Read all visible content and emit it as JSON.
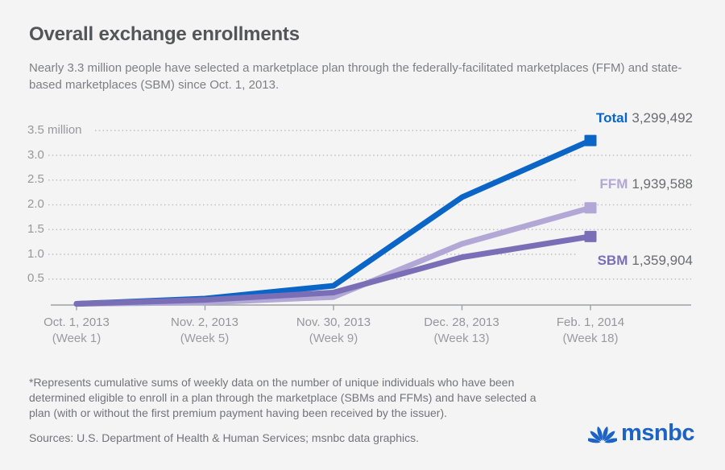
{
  "header": {
    "title": "Overall exchange enrollments",
    "subtitle": "Nearly 3.3 million people have selected a marketplace plan through the federally-facilitated marketplaces (FFM) and state-based marketplaces (SBM) since Oct. 1, 2013."
  },
  "chart_data": {
    "type": "line",
    "title": "Overall exchange enrollments",
    "unit": "millions of people (cumulative)",
    "ylim": [
      0,
      3.5
    ],
    "grid": "dotted-horizontal",
    "legend_position": "right-of-line-ends",
    "y_axis_labels": [
      "3.5 million",
      "3.0",
      "2.5",
      "2.0",
      "1.5",
      "1.0",
      "0.5"
    ],
    "y_gridline_values": [
      3.5,
      3.0,
      2.5,
      2.0,
      1.5,
      1.0,
      0.5
    ],
    "x_axis": [
      {
        "date": "Oct. 1, 2013",
        "week": "(Week 1)"
      },
      {
        "date": "Nov. 2, 2013",
        "week": "(Week 5)"
      },
      {
        "date": "Nov. 30, 2013",
        "week": "(Week 9)"
      },
      {
        "date": "Dec. 28, 2013",
        "week": "(Week 13)"
      },
      {
        "date": "Feb. 1, 2014",
        "week": "(Week 18)"
      }
    ],
    "series": [
      {
        "name": "FFM",
        "color": "#b1a8d6",
        "values_millions": [
          0,
          0.027,
          0.137,
          1.212,
          1.9396
        ],
        "end_value": 1939588,
        "end_value_label": "1,939,588"
      },
      {
        "name": "Total",
        "color": "#0b65c6",
        "values_millions": [
          0,
          0.106,
          0.365,
          2.153,
          3.2995
        ],
        "end_value": 3299492,
        "end_value_label": "3,299,492"
      },
      {
        "name": "SBM",
        "color": "#7a6fb6",
        "values_millions": [
          0,
          0.079,
          0.227,
          0.941,
          1.3599
        ],
        "end_value": 1359904,
        "end_value_label": "1,359,904"
      }
    ]
  },
  "legend": [
    {
      "name": "Total",
      "value": "3,299,492",
      "color": "#0b65c6"
    },
    {
      "name": "FFM",
      "value": "1,939,588",
      "color": "#b1a8d6"
    },
    {
      "name": "SBM",
      "value": "1,359,904",
      "color": "#7a6fb6"
    }
  ],
  "footnote": "*Represents cumulative sums of weekly data on the number of unique individuals who have been determined eligible to enroll in a plan through the marketplace (SBMs and FFMs) and have selected a plan (with or without the first premium payment having been received by the issuer).",
  "sources": "Sources: U.S. Department of Health & Human Services; msnbc data graphics.",
  "logo": {
    "brand": "msnbc",
    "color": "#1c63c4",
    "icon": "nbc-peacock-icon"
  },
  "colors": {
    "background": "#f4f4f5",
    "title_text": "#545559",
    "subtitle_text": "#7e7f83",
    "axis_text": "#98989b",
    "value_text": "#6b6c6f",
    "gridline": "#c0c0c3",
    "axis_line": "#9fa0a3"
  }
}
